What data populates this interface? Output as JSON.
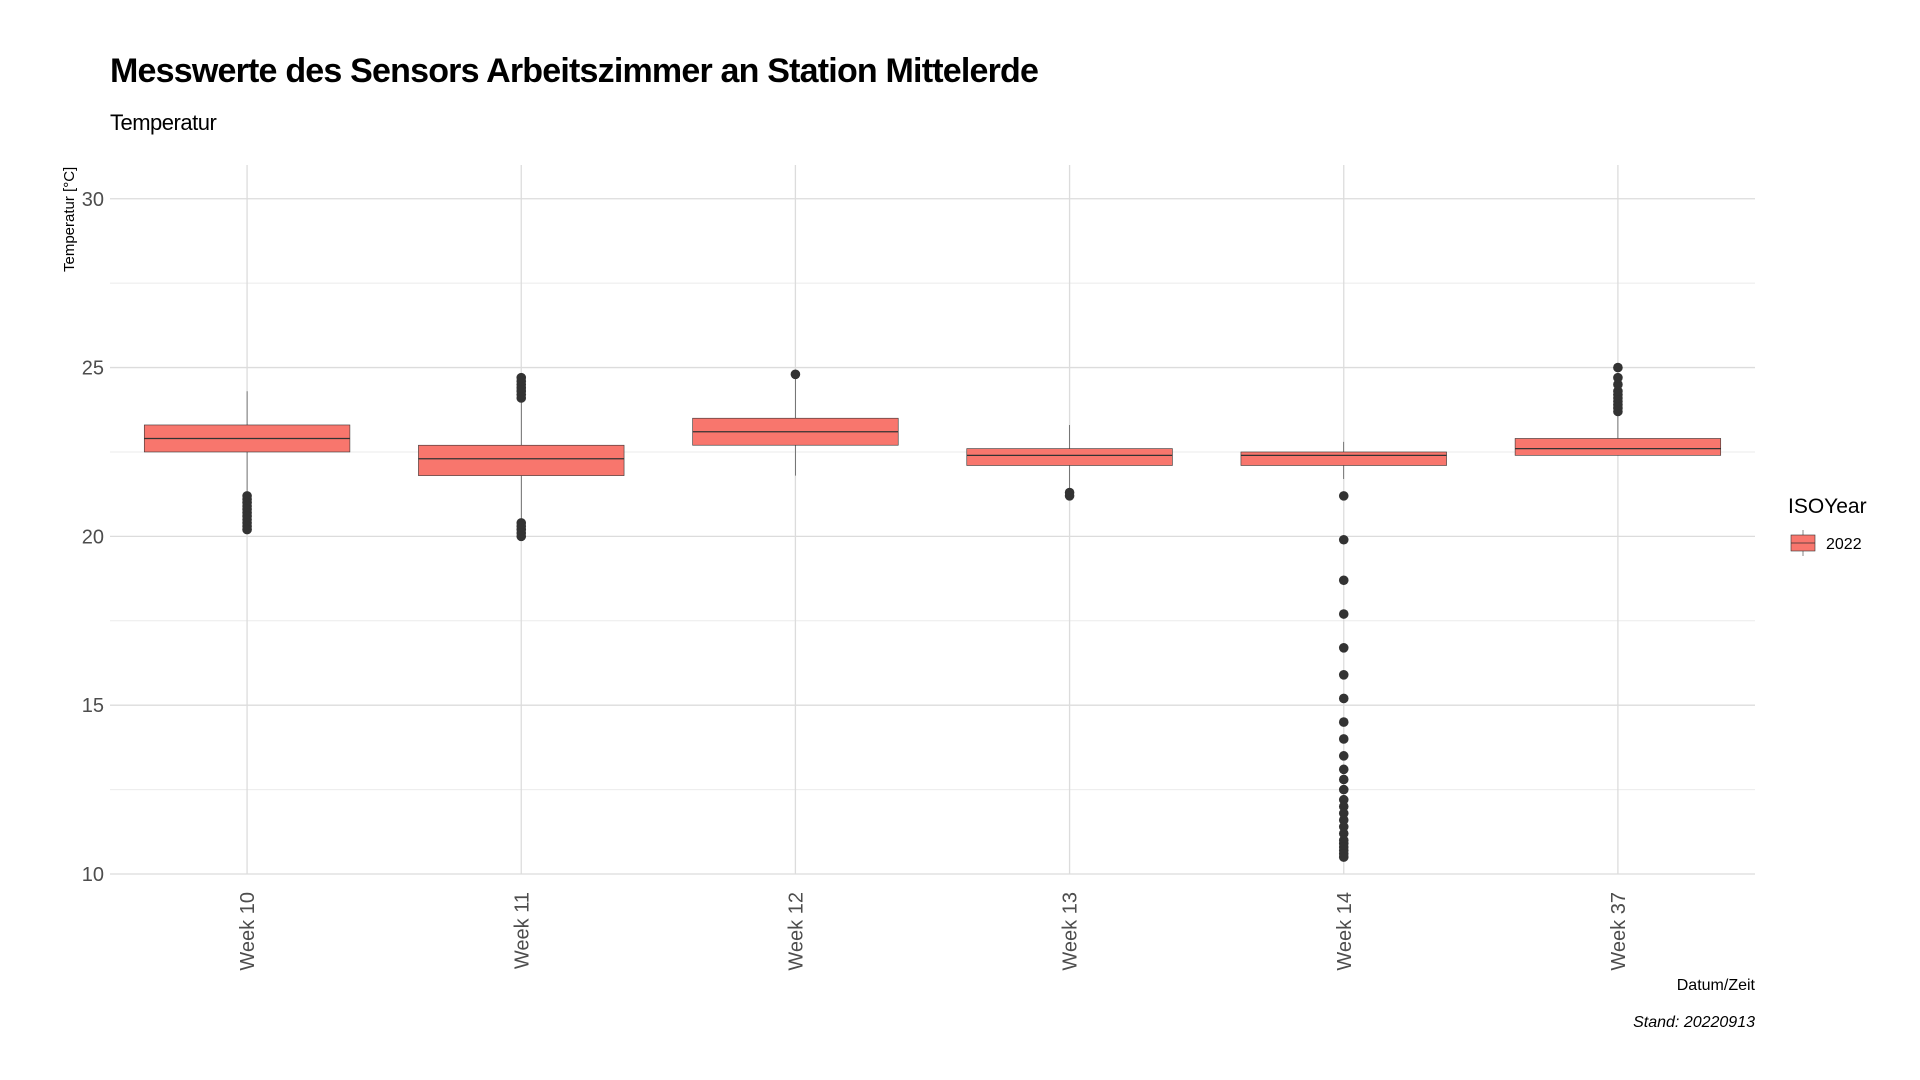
{
  "chart_data": {
    "type": "boxplot",
    "title": "Messwerte des Sensors Arbeitszimmer an Station Mittelerde",
    "subtitle": "Temperatur",
    "xlabel": "Datum/Zeit",
    "ylabel": "Temperatur [°C]",
    "caption": "Stand: 20220913",
    "ylim": [
      10,
      31
    ],
    "y_ticks": [
      10,
      15,
      20,
      25,
      30
    ],
    "grid": true,
    "legend": {
      "title": "ISOYear",
      "position": "right",
      "entries": [
        {
          "label": "2022",
          "color": "#F8766D"
        }
      ]
    },
    "categories": [
      "Week 10",
      "Week 11",
      "Week 12",
      "Week 13",
      "Week 14",
      "Week 37"
    ],
    "series": [
      {
        "name": "2022",
        "color": "#F8766D",
        "boxes": [
          {
            "category": "Week 10",
            "whisker_low": 21.3,
            "q1": 22.5,
            "median": 22.9,
            "q3": 23.3,
            "whisker_high": 24.3,
            "outliers": [
              21.2,
              21.1,
              21.0,
              20.9,
              20.8,
              20.7,
              20.6,
              20.5,
              20.4,
              20.3,
              20.2
            ]
          },
          {
            "category": "Week 11",
            "whisker_low": 20.5,
            "q1": 21.8,
            "median": 22.3,
            "q3": 22.7,
            "whisker_high": 24.0,
            "outliers": [
              20.4,
              20.3,
              20.2,
              20.1,
              20.0,
              24.1,
              24.2,
              24.3,
              24.4,
              24.5,
              24.6,
              24.7
            ]
          },
          {
            "category": "Week 12",
            "whisker_low": 21.8,
            "q1": 22.7,
            "median": 23.1,
            "q3": 23.5,
            "whisker_high": 24.7,
            "outliers": [
              24.8
            ]
          },
          {
            "category": "Week 13",
            "whisker_low": 21.4,
            "q1": 22.1,
            "median": 22.4,
            "q3": 22.6,
            "whisker_high": 23.3,
            "outliers": [
              21.3,
              21.2
            ]
          },
          {
            "category": "Week 14",
            "whisker_low": 21.7,
            "q1": 22.1,
            "median": 22.4,
            "q3": 22.5,
            "whisker_high": 22.8,
            "outliers": [
              21.2,
              19.9,
              18.7,
              17.7,
              16.7,
              15.9,
              15.2,
              14.5,
              14.0,
              13.5,
              13.1,
              12.8,
              12.5,
              12.2,
              12.0,
              11.8,
              11.6,
              11.4,
              11.2,
              11.0,
              10.9,
              10.8,
              10.7,
              10.6,
              10.5
            ]
          },
          {
            "category": "Week 37",
            "whisker_low": 22.4,
            "q1": 22.4,
            "median": 22.6,
            "q3": 22.9,
            "whisker_high": 23.6,
            "outliers": [
              23.7,
              23.8,
              23.9,
              24.0,
              24.1,
              24.2,
              24.3,
              24.5,
              24.7,
              25.0
            ]
          }
        ]
      }
    ]
  }
}
